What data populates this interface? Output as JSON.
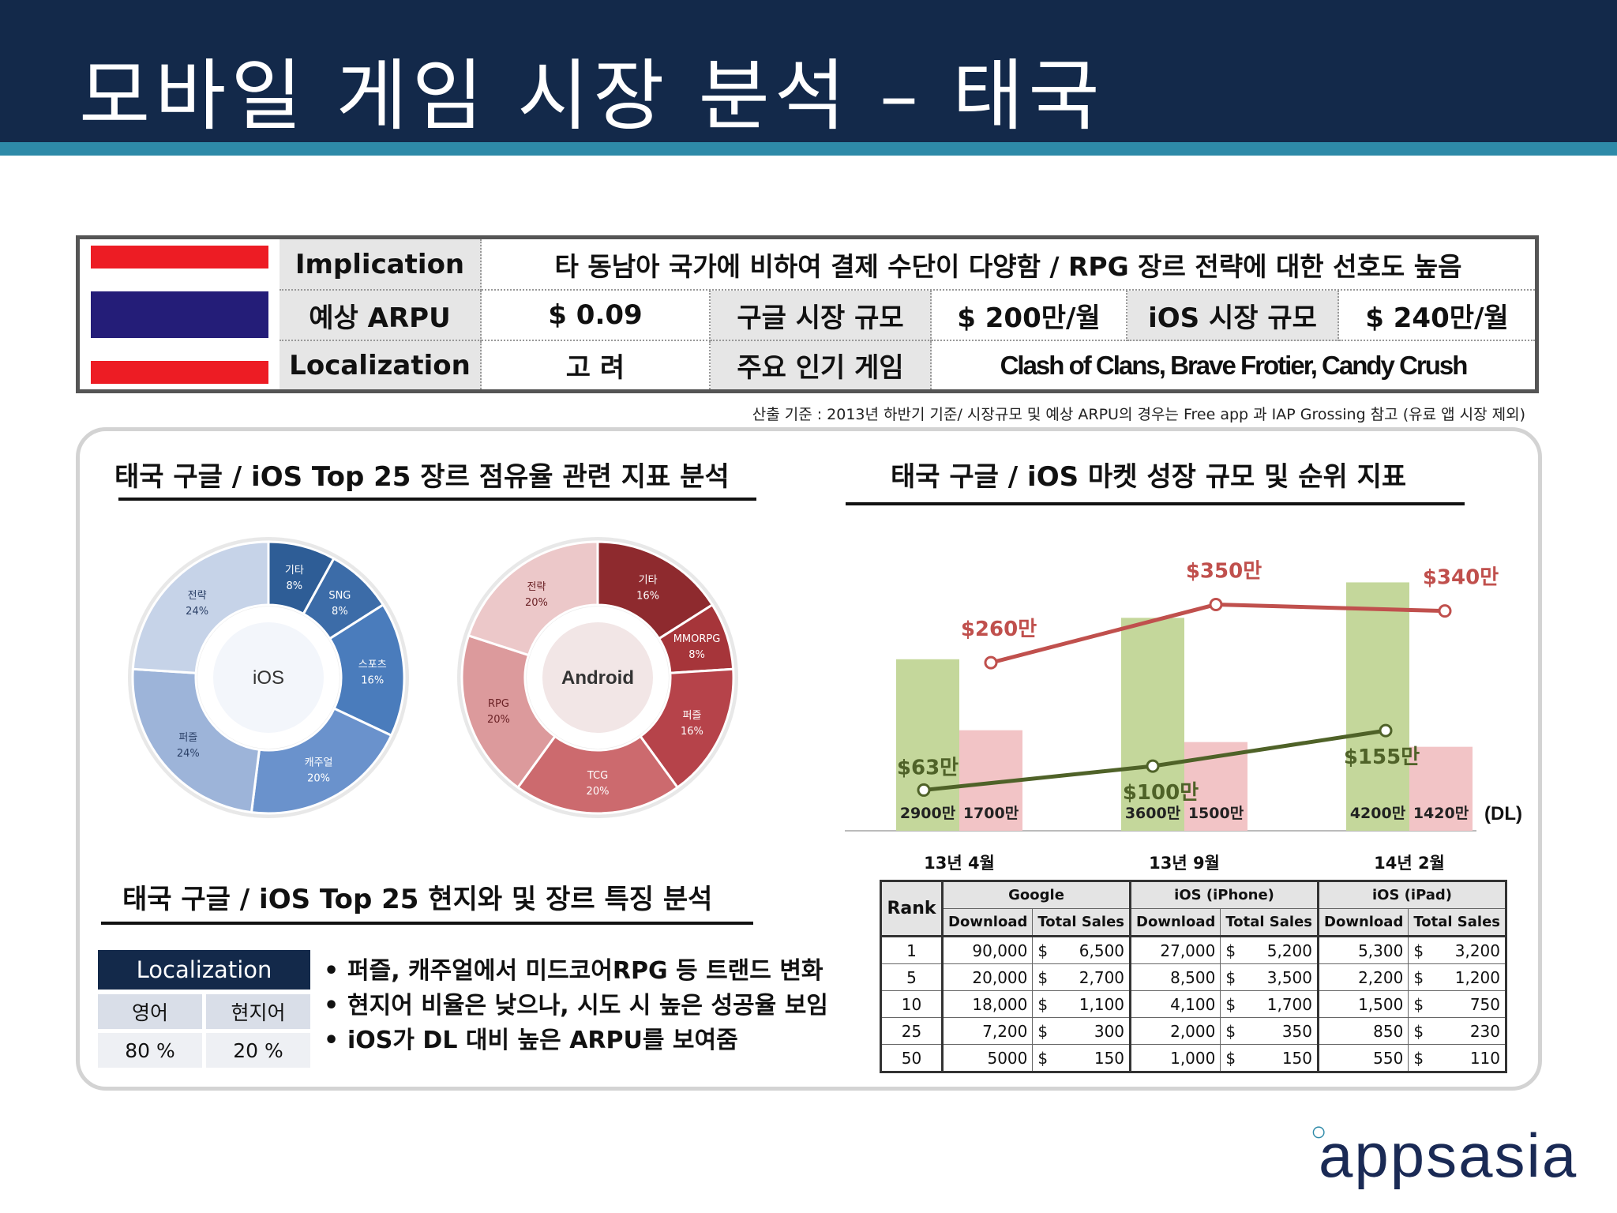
{
  "title": "모바일 게임 시장 분석 – 태국",
  "info": {
    "implication_label": "Implication",
    "implication_text": "타 동남아 국가에 비하여 결제 수단이 다양함 / RPG 장르 전략에 대한 선호도 높음",
    "arpu_label": "예상 ARPU",
    "arpu_value": "$ 0.09",
    "google_market_label": "구글 시장 규모",
    "google_market_value": "$ 200만/월",
    "ios_market_label": "iOS 시장 규모",
    "ios_market_value": "$ 240만/월",
    "localization_label": "Localization",
    "localization_value": "고 려",
    "popular_games_label": "주요 인기 게임",
    "popular_games_value": "Clash of Clans, Brave Frotier, Candy Crush",
    "flag_colors": [
      "#ed1c24",
      "#ffffff",
      "#241d78",
      "#ffffff",
      "#ed1c24"
    ]
  },
  "footnote": "산출 기준 : 2013년 하반기 기준/ 시장규모 및 예상 ARPU의 경우는 Free app 과 IAP Grossing 참고 (유료 앱 시장 제외)",
  "genre_section": {
    "title": "태국  구글 / iOS Top 25 장르 점유율 관련 지표 분석",
    "ios_label": "iOS",
    "android_label": "Android"
  },
  "growth_section": {
    "title": "태국 구글 / iOS 마켓 성장 규모 및 순위 지표",
    "dl_unit": "(DL)"
  },
  "local_section": {
    "title": "태국  구글 / iOS Top 25 현지와 및 장르 특징 분석",
    "table_header": "Localization",
    "col1_label": "영어",
    "col2_label": "현지어",
    "col1_value": "80 %",
    "col2_value": "20 %",
    "bullets": [
      "퍼즐, 캐주얼에서 미드코어RPG 등 트랜드 변화",
      "현지어 비율은 낮으나, 시도 시 높은 성공율 보임",
      "iOS가 DL 대비 높은 ARPU를 보여줌"
    ]
  },
  "chart_data": [
    {
      "type": "pie",
      "title": "",
      "center_label": "iOS",
      "slices": [
        {
          "label": "기타",
          "pct_label": "8%",
          "value": 8,
          "color": "#2e5d96"
        },
        {
          "label": "SNG",
          "pct_label": "8%",
          "value": 8,
          "color": "#3c6ca8"
        },
        {
          "label": "스포츠",
          "pct_label": "16%",
          "value": 16,
          "color": "#4a7cbc"
        },
        {
          "label": "캐주얼",
          "pct_label": "20%",
          "value": 20,
          "color": "#6a92cc"
        },
        {
          "label": "퍼즐",
          "pct_label": "24%",
          "value": 24,
          "color": "#9db4d9"
        },
        {
          "label": "전략",
          "pct_label": "24%",
          "value": 24,
          "color": "#c6d3e8"
        }
      ]
    },
    {
      "type": "pie",
      "title": "",
      "center_label": "Android",
      "slices": [
        {
          "label": "기타",
          "pct_label": "16%",
          "value": 16,
          "color": "#8e2a2e"
        },
        {
          "label": "MMORPG",
          "pct_label": "8%",
          "value": 8,
          "color": "#a6353a"
        },
        {
          "label": "퍼즐",
          "pct_label": "16%",
          "value": 16,
          "color": "#b6434a"
        },
        {
          "label": "TCG",
          "pct_label": "20%",
          "value": 20,
          "color": "#cc6a6e"
        },
        {
          "label": "RPG",
          "pct_label": "20%",
          "value": 20,
          "color": "#dc9a9c"
        },
        {
          "label": "전략",
          "pct_label": "20%",
          "value": 20,
          "color": "#ecc8c9"
        }
      ]
    },
    {
      "type": "bar",
      "title": "",
      "categories": [
        "13년 4월",
        "13년 9월",
        "14년 2월"
      ],
      "bar_series": [
        {
          "values": [
            2900,
            3600,
            4200
          ],
          "labels": [
            "2900만",
            "3600만",
            "4200만"
          ],
          "color": "#c4d79b"
        },
        {
          "values": [
            1700,
            1500,
            1420
          ],
          "labels": [
            "1700만",
            "1500만",
            "1420만"
          ],
          "color": "#f2c4c6"
        }
      ],
      "line_series": [
        {
          "values": [
            260,
            350,
            340
          ],
          "labels": [
            "$260만",
            "$350만",
            "$340만"
          ],
          "color": "#c0504d"
        },
        {
          "values": [
            63,
            100,
            155
          ],
          "labels": [
            "$63만",
            "$100만",
            "$155만"
          ],
          "color": "#4f6228"
        }
      ],
      "ylim_bars": [
        0,
        4700
      ],
      "ylim_lines": [
        0,
        430
      ]
    }
  ],
  "rank_table": {
    "rank_header": "Rank",
    "groups": [
      "Google",
      "iOS (iPhone)",
      "iOS (iPad)"
    ],
    "subheaders": [
      "Download",
      "Total Sales"
    ],
    "currency": "$",
    "rows": [
      {
        "rank": "1",
        "g_dl": "90,000",
        "g_sales": "6,500",
        "ip_dl": "27,000",
        "ip_sales": "5,200",
        "pad_dl": "5,300",
        "pad_sales": "3,200"
      },
      {
        "rank": "5",
        "g_dl": "20,000",
        "g_sales": "2,700",
        "ip_dl": "8,500",
        "ip_sales": "3,500",
        "pad_dl": "2,200",
        "pad_sales": "1,200"
      },
      {
        "rank": "10",
        "g_dl": "18,000",
        "g_sales": "1,100",
        "ip_dl": "4,100",
        "ip_sales": "1,700",
        "pad_dl": "1,500",
        "pad_sales": "750"
      },
      {
        "rank": "25",
        "g_dl": "7,200",
        "g_sales": "300",
        "ip_dl": "2,000",
        "ip_sales": "350",
        "pad_dl": "850",
        "pad_sales": "230"
      },
      {
        "rank": "50",
        "g_dl": "5000",
        "g_sales": "150",
        "ip_dl": "1,000",
        "ip_sales": "150",
        "pad_dl": "550",
        "pad_sales": "110"
      }
    ]
  },
  "logo_text": "appsasia"
}
